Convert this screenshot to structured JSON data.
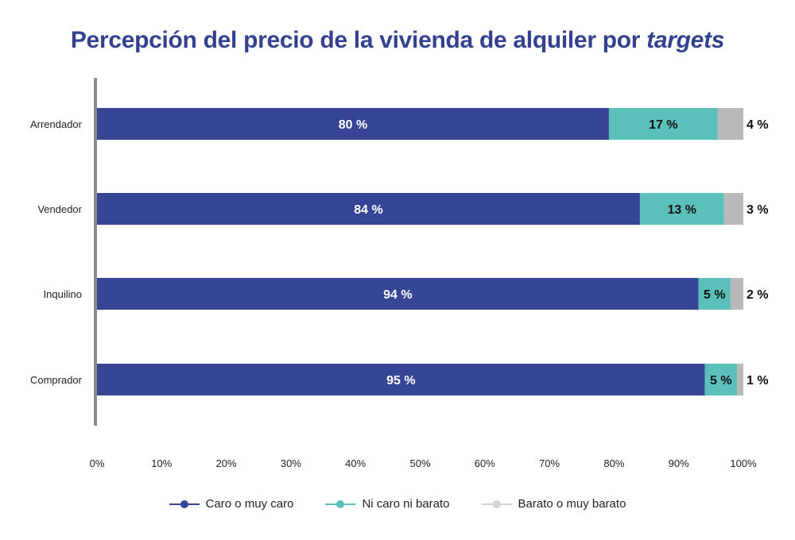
{
  "title": {
    "prefix": "Percepción del precio de la vivienda de alquiler por ",
    "emphasis": "targets"
  },
  "chart_data": {
    "type": "bar",
    "orientation": "horizontal",
    "stacked": true,
    "title": "Percepción del precio de la vivienda de alquiler por targets",
    "categories": [
      "Arrendador",
      "Vendedor",
      "Inquilino",
      "Comprador"
    ],
    "series": [
      {
        "name": "Caro o muy caro",
        "color": "#374597",
        "values": [
          80,
          84,
          94,
          95
        ],
        "labels": [
          "80 %",
          "84 %",
          "94 %",
          "95 %"
        ]
      },
      {
        "name": "Ni caro ni barato",
        "color": "#5bbfba",
        "values": [
          17,
          13,
          5,
          5
        ],
        "labels": [
          "17 %",
          "13 %",
          "5 %",
          "5 %"
        ]
      },
      {
        "name": "Barato o muy barato",
        "color": "#b9b9b9",
        "values": [
          4,
          3,
          2,
          1
        ],
        "labels": [
          "4 %",
          "3 %",
          "2 %",
          "1 %"
        ]
      }
    ],
    "xticks": [
      "0%",
      "10%",
      "20%",
      "30%",
      "40%",
      "50%",
      "60%",
      "70%",
      "80%",
      "90%",
      "100%"
    ],
    "xlim": [
      0,
      100
    ],
    "xlabel": "",
    "ylabel": "",
    "legend_position": "bottom",
    "grid": false
  },
  "legend": {
    "items": [
      {
        "label": "Caro o muy caro",
        "line_color": "#374597",
        "dot_color": "#374597"
      },
      {
        "label": "Ni caro ni barato",
        "line_color": "#5bbfba",
        "dot_color": "#5bbfba"
      },
      {
        "label": "Barato o muy barato",
        "line_color": "#d4d4d4",
        "dot_color": "#d4d4d4"
      }
    ]
  }
}
